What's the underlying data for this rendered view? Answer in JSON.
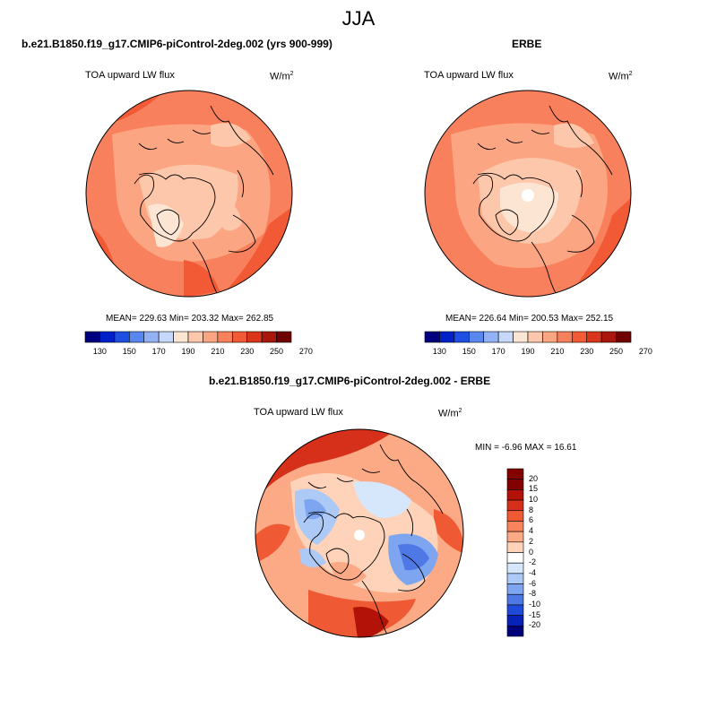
{
  "title": "JJA",
  "panels": [
    {
      "title": "b.e21.B1850.f19_g17.CMIP6-piControl-2deg.002 (yrs 900-999)",
      "variable": "TOA upward LW flux",
      "units": "W/m",
      "units_exp": "2",
      "stats": "MEAN= 229.63  Min= 203.32  Max= 262.85",
      "colorbar_ticks": [
        "130",
        "150",
        "170",
        "190",
        "210",
        "230",
        "250",
        "270"
      ]
    },
    {
      "title": "ERBE",
      "variable": "TOA upward LW flux",
      "units": "W/m",
      "units_exp": "2",
      "stats": "MEAN= 226.64  Min= 200.53  Max= 252.15",
      "colorbar_ticks": [
        "130",
        "150",
        "170",
        "190",
        "210",
        "230",
        "250",
        "270"
      ]
    },
    {
      "title": "b.e21.B1850.f19_g17.CMIP6-piControl-2deg.002 - ERBE",
      "variable": "TOA upward LW flux",
      "units": "W/m",
      "units_exp": "2",
      "stats": "MIN =  -6.96 MAX =  16.61",
      "colorbar_ticks": [
        "20",
        "15",
        "10",
        "8",
        "6",
        "4",
        "2",
        "0",
        "-2",
        "-4",
        "-6",
        "-8",
        "-10",
        "-15",
        "-20"
      ]
    }
  ],
  "colors": {
    "abs_scale": [
      "#00007f",
      "#0020c8",
      "#1f4fe3",
      "#5a86ef",
      "#92b2f5",
      "#c7d9fa",
      "#fde5d4",
      "#fcc7aa",
      "#fba582",
      "#f8805c",
      "#f25a36",
      "#d9361c",
      "#a8160c",
      "#6e0000"
    ],
    "diff_scale": [
      "#830000",
      "#b31208",
      "#d7301a",
      "#ef5a35",
      "#f8835d",
      "#fcaa85",
      "#fed3b9",
      "#ffffff",
      "#d6e6fb",
      "#adc9f6",
      "#7ea5ef",
      "#4e78e5",
      "#1f4bdb",
      "#0622b7",
      "#00007a"
    ]
  }
}
